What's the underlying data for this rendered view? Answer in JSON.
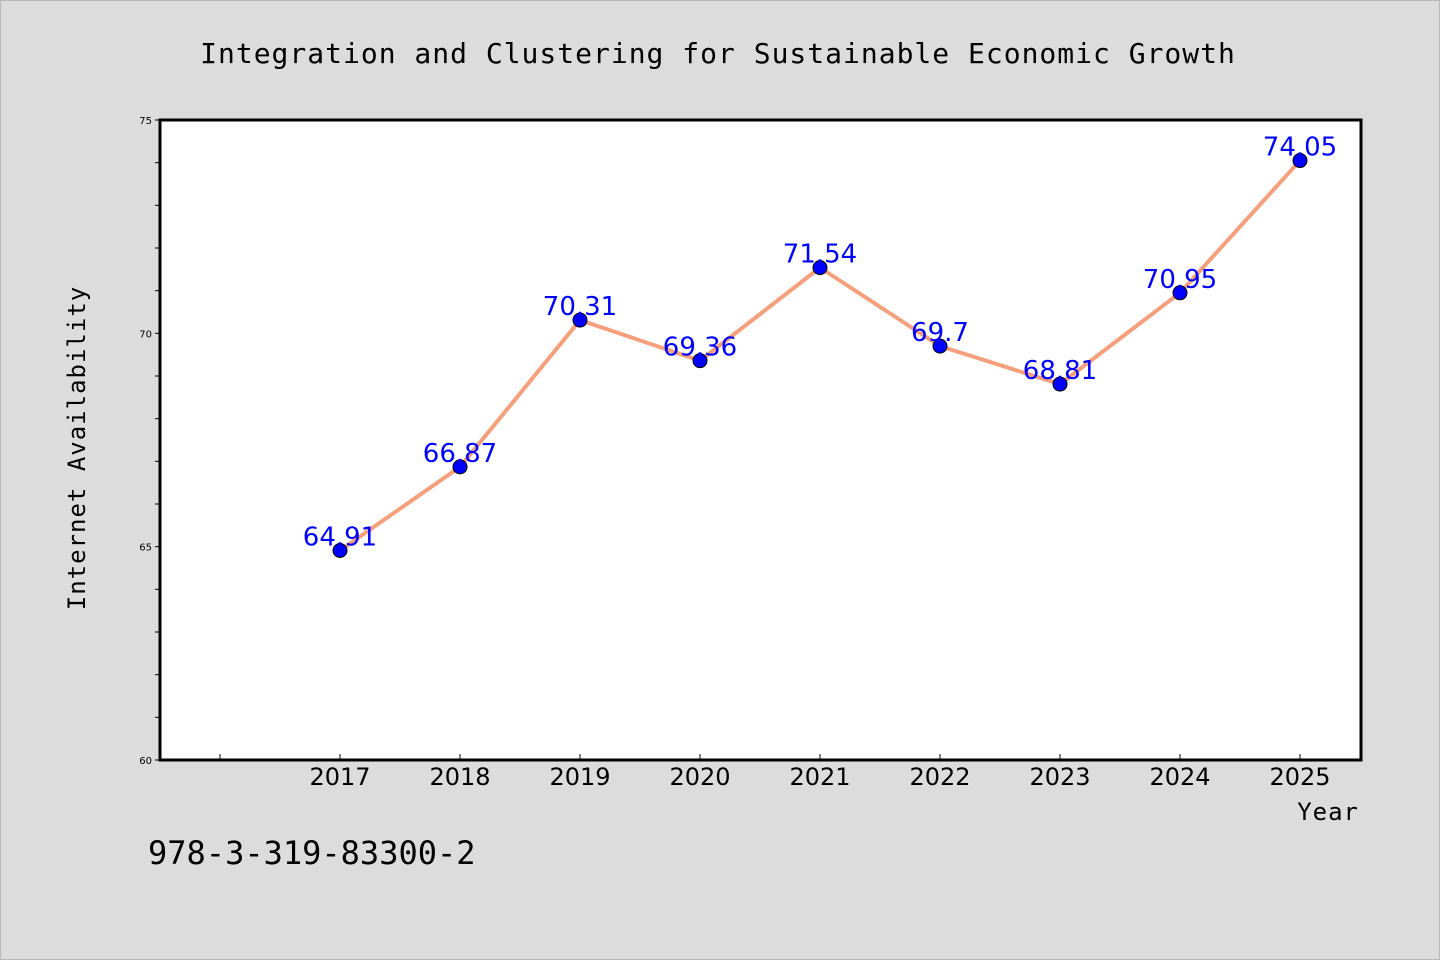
{
  "chart_data": {
    "type": "line",
    "title": "Integration and Clustering for Sustainable Economic Growth",
    "xlabel": "Year",
    "ylabel": "Internet Availability",
    "categories": [
      "2017",
      "2018",
      "2019",
      "2020",
      "2021",
      "2022",
      "2023",
      "2024",
      "2025"
    ],
    "values": [
      64.91,
      66.87,
      70.31,
      69.36,
      71.54,
      69.7,
      68.81,
      70.95,
      74.05
    ],
    "data_labels": [
      "64.91",
      "66.87",
      "70.31",
      "69.36",
      "71.54",
      "69.7",
      "68.81",
      "70.95",
      "74.05"
    ],
    "ylim": [
      60,
      75
    ],
    "yticks": [
      "60",
      "65",
      "70",
      "75"
    ],
    "grid": false,
    "line_color": "#f4a07c",
    "marker_color": "#0000ff",
    "label_color": "#0000ff"
  },
  "footer": {
    "isbn": "978-3-319-83300-2"
  }
}
